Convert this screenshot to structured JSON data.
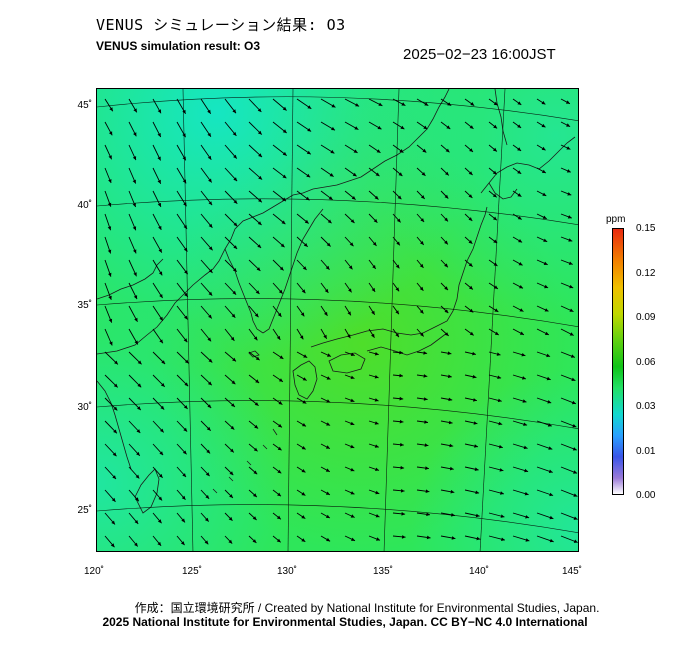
{
  "header": {
    "title_jp": "VENUS シミュレーション結果: O3",
    "title_en": "VENUS simulation result: O3",
    "timestamp": "2025−02−23 16:00JST"
  },
  "map": {
    "lat_labels": [
      "45˚",
      "40˚",
      "35˚",
      "30˚",
      "25˚"
    ],
    "lon_labels": [
      "120˚",
      "125˚",
      "130˚",
      "135˚",
      "140˚",
      "145˚"
    ],
    "field_colors": {
      "base": "#2ee65a",
      "cool": "#18e6b4",
      "warm": "#5ee02a"
    },
    "arrow_color": "#000000",
    "coast_color": "#1a1a1a"
  },
  "colorbar": {
    "unit": "ppm",
    "ticks": [
      "0.15",
      "0.12",
      "0.09",
      "0.06",
      "0.03",
      "0.01",
      "0.00"
    ]
  },
  "footer": {
    "credit_line1": "作成：国立環境研究所 / Created by National Institute for Environmental Studies, Japan.",
    "credit_line2": "2025 National Institute for Environmental Studies, Japan. CC BY−NC 4.0 International"
  }
}
